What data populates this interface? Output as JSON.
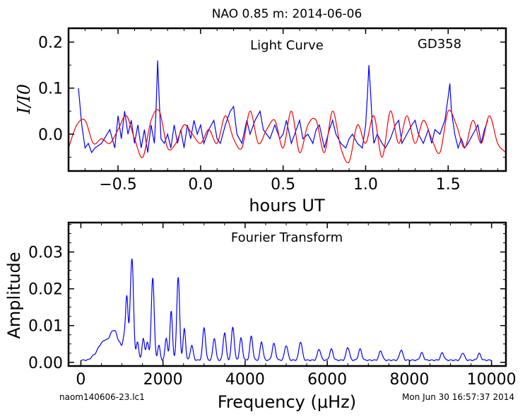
{
  "figure_title": "NAO 0.85 m:  2014-06-06",
  "footer": {
    "left": "naom140606-23.lc1",
    "right": "Mon Jun 30 16:57:37 2014"
  },
  "colors": {
    "blue": "#0000ff",
    "red": "#ff0000"
  },
  "chart_data": [
    {
      "type": "line",
      "title": "Light Curve",
      "annotation": "GD358",
      "xlabel": "hours UT",
      "ylabel": "I/I0",
      "xlim": [
        -0.8,
        1.85
      ],
      "ylim": [
        -0.08,
        0.23
      ],
      "xticks": [
        -0.5,
        0.0,
        0.5,
        1.0,
        1.5
      ],
      "xtick_labels": [
        "−0.5",
        "0.0",
        "0.5",
        "1.0",
        "1.5"
      ],
      "yticks": [
        0.0,
        0.1,
        0.2
      ],
      "ytick_labels": [
        "0.0",
        "0.1",
        "0.2"
      ],
      "series": [
        {
          "color": "#0000ff",
          "x": [
            -0.74,
            -0.72,
            -0.7,
            -0.68,
            -0.66,
            -0.64,
            -0.6,
            -0.55,
            -0.52,
            -0.5,
            -0.48,
            -0.46,
            -0.44,
            -0.42,
            -0.4,
            -0.38,
            -0.36,
            -0.34,
            -0.32,
            -0.3,
            -0.28,
            -0.27,
            -0.26,
            -0.25,
            -0.24,
            -0.22,
            -0.2,
            -0.18,
            -0.16,
            -0.14,
            -0.12,
            -0.1,
            -0.08,
            -0.06,
            -0.04,
            -0.02,
            0.0,
            0.02,
            0.05,
            0.08,
            0.1,
            0.12,
            0.15,
            0.18,
            0.2,
            0.22,
            0.25,
            0.28,
            0.3,
            0.33,
            0.36,
            0.38,
            0.4,
            0.42,
            0.45,
            0.48,
            0.5,
            0.52,
            0.55,
            0.58,
            0.6,
            0.62,
            0.65,
            0.68,
            0.7,
            0.72,
            0.75,
            0.78,
            0.8,
            0.82,
            0.85,
            0.88,
            0.9,
            0.92,
            0.95,
            0.98,
            1.0,
            1.01,
            1.02,
            1.03,
            1.04,
            1.05,
            1.07,
            1.1,
            1.12,
            1.15,
            1.18,
            1.2,
            1.22,
            1.25,
            1.28,
            1.3,
            1.32,
            1.35,
            1.38,
            1.4,
            1.42,
            1.45,
            1.48,
            1.5,
            1.51,
            1.52,
            1.54,
            1.56,
            1.58,
            1.6,
            1.62,
            1.65,
            1.68,
            1.7,
            1.72,
            1.74
          ],
          "y": [
            0.1,
            0.02,
            -0.03,
            -0.02,
            -0.04,
            -0.03,
            -0.02,
            0.01,
            -0.03,
            0.04,
            -0.01,
            0.05,
            0.0,
            0.03,
            -0.02,
            0.02,
            -0.03,
            0.01,
            -0.04,
            0.02,
            -0.02,
            0.05,
            0.16,
            0.07,
            -0.01,
            -0.02,
            0.0,
            -0.03,
            0.02,
            -0.02,
            0.01,
            -0.03,
            0.02,
            -0.01,
            0.03,
            0.0,
            0.02,
            -0.02,
            0.01,
            0.03,
            -0.01,
            -0.02,
            0.02,
            0.05,
            0.06,
            0.0,
            -0.02,
            0.03,
            0.0,
            0.03,
            0.05,
            0.01,
            0.0,
            -0.01,
            0.02,
            -0.01,
            0.0,
            0.03,
            -0.02,
            0.01,
            0.03,
            -0.01,
            0.0,
            -0.02,
            0.01,
            0.02,
            -0.03,
            0.01,
            0.03,
            0.0,
            -0.02,
            -0.03,
            -0.01,
            0.0,
            -0.02,
            -0.03,
            0.02,
            0.08,
            0.15,
            0.09,
            0.02,
            -0.02,
            0.0,
            -0.02,
            -0.03,
            -0.01,
            0.02,
            0.03,
            -0.02,
            0.0,
            0.02,
            0.03,
            0.0,
            -0.02,
            0.01,
            -0.02,
            0.01,
            0.0,
            0.03,
            0.08,
            0.11,
            0.05,
            0.0,
            -0.03,
            -0.01,
            -0.03,
            -0.02,
            0.0,
            0.02,
            -0.02,
            0.01,
            0.03
          ]
        },
        {
          "color": "#ff0000",
          "x": [
            -0.8,
            -0.75,
            -0.7,
            -0.65,
            -0.6,
            -0.55,
            -0.5,
            -0.45,
            -0.4,
            -0.35,
            -0.3,
            -0.25,
            -0.2,
            -0.15,
            -0.1,
            -0.05,
            0.0,
            0.05,
            0.1,
            0.15,
            0.2,
            0.25,
            0.3,
            0.35,
            0.4,
            0.45,
            0.5,
            0.55,
            0.6,
            0.65,
            0.7,
            0.75,
            0.8,
            0.85,
            0.9,
            0.95,
            1.0,
            1.05,
            1.1,
            1.15,
            1.2,
            1.25,
            1.3,
            1.35,
            1.4,
            1.45,
            1.5,
            1.55,
            1.6,
            1.65,
            1.7,
            1.75,
            1.8,
            1.85
          ],
          "y": [
            -0.03,
            0.02,
            0.03,
            -0.02,
            -0.01,
            -0.02,
            0.01,
            0.04,
            -0.01,
            -0.05,
            0.03,
            0.05,
            -0.03,
            -0.02,
            0.02,
            0.0,
            -0.02,
            0.01,
            -0.02,
            0.04,
            -0.01,
            -0.03,
            0.05,
            -0.02,
            0.01,
            0.03,
            -0.03,
            0.05,
            -0.04,
            0.02,
            0.03,
            -0.04,
            0.05,
            -0.03,
            -0.06,
            0.02,
            -0.02,
            0.04,
            -0.05,
            0.05,
            -0.02,
            0.04,
            -0.02,
            0.03,
            -0.01,
            -0.04,
            0.05,
            0.02,
            -0.03,
            0.03,
            -0.02,
            0.04,
            -0.02,
            -0.04
          ]
        }
      ]
    },
    {
      "type": "line",
      "title": "Fourier Transform",
      "xlabel": "Frequency (μHz)",
      "ylabel": "Amplitude",
      "xlim": [
        -300,
        10350
      ],
      "ylim": [
        -0.001,
        0.038
      ],
      "xticks": [
        0,
        2000,
        4000,
        6000,
        8000,
        10000
      ],
      "xtick_labels": [
        "0",
        "2000",
        "4000",
        "6000",
        "8000",
        "10000"
      ],
      "yticks": [
        0.0,
        0.01,
        0.02,
        0.03
      ],
      "ytick_labels": [
        "0.00",
        "0.01",
        "0.02",
        "0.03"
      ],
      "peaks": [
        {
          "f": 300,
          "a": 0.001,
          "w": 60
        },
        {
          "f": 450,
          "a": 0.003,
          "w": 70
        },
        {
          "f": 600,
          "a": 0.005,
          "w": 80
        },
        {
          "f": 750,
          "a": 0.006,
          "w": 60
        },
        {
          "f": 850,
          "a": 0.006,
          "w": 50
        },
        {
          "f": 950,
          "a": 0.004,
          "w": 40
        },
        {
          "f": 1050,
          "a": 0.006,
          "w": 35
        },
        {
          "f": 1120,
          "a": 0.0165,
          "w": 30
        },
        {
          "f": 1200,
          "a": 0.007,
          "w": 30
        },
        {
          "f": 1250,
          "a": 0.0255,
          "w": 35
        },
        {
          "f": 1380,
          "a": 0.005,
          "w": 30
        },
        {
          "f": 1520,
          "a": 0.006,
          "w": 30
        },
        {
          "f": 1620,
          "a": 0.005,
          "w": 30
        },
        {
          "f": 1750,
          "a": 0.0225,
          "w": 35
        },
        {
          "f": 1900,
          "a": 0.004,
          "w": 30
        },
        {
          "f": 2080,
          "a": 0.006,
          "w": 30
        },
        {
          "f": 2200,
          "a": 0.0135,
          "w": 30
        },
        {
          "f": 2370,
          "a": 0.0225,
          "w": 35
        },
        {
          "f": 2520,
          "a": 0.0085,
          "w": 30
        },
        {
          "f": 2700,
          "a": 0.004,
          "w": 35
        },
        {
          "f": 3000,
          "a": 0.0088,
          "w": 35
        },
        {
          "f": 3250,
          "a": 0.006,
          "w": 35
        },
        {
          "f": 3500,
          "a": 0.0075,
          "w": 35
        },
        {
          "f": 3700,
          "a": 0.009,
          "w": 35
        },
        {
          "f": 3900,
          "a": 0.006,
          "w": 35
        },
        {
          "f": 4150,
          "a": 0.0065,
          "w": 35
        },
        {
          "f": 4400,
          "a": 0.005,
          "w": 35
        },
        {
          "f": 4700,
          "a": 0.0045,
          "w": 40
        },
        {
          "f": 5000,
          "a": 0.004,
          "w": 40
        },
        {
          "f": 5350,
          "a": 0.005,
          "w": 40
        },
        {
          "f": 5800,
          "a": 0.003,
          "w": 40
        },
        {
          "f": 6100,
          "a": 0.003,
          "w": 40
        },
        {
          "f": 6500,
          "a": 0.0035,
          "w": 40
        },
        {
          "f": 6800,
          "a": 0.003,
          "w": 40
        },
        {
          "f": 7300,
          "a": 0.0025,
          "w": 40
        },
        {
          "f": 7800,
          "a": 0.0028,
          "w": 40
        },
        {
          "f": 8300,
          "a": 0.002,
          "w": 40
        },
        {
          "f": 8800,
          "a": 0.002,
          "w": 40
        },
        {
          "f": 9300,
          "a": 0.002,
          "w": 40
        },
        {
          "f": 9700,
          "a": 0.0018,
          "w": 40
        }
      ]
    }
  ]
}
